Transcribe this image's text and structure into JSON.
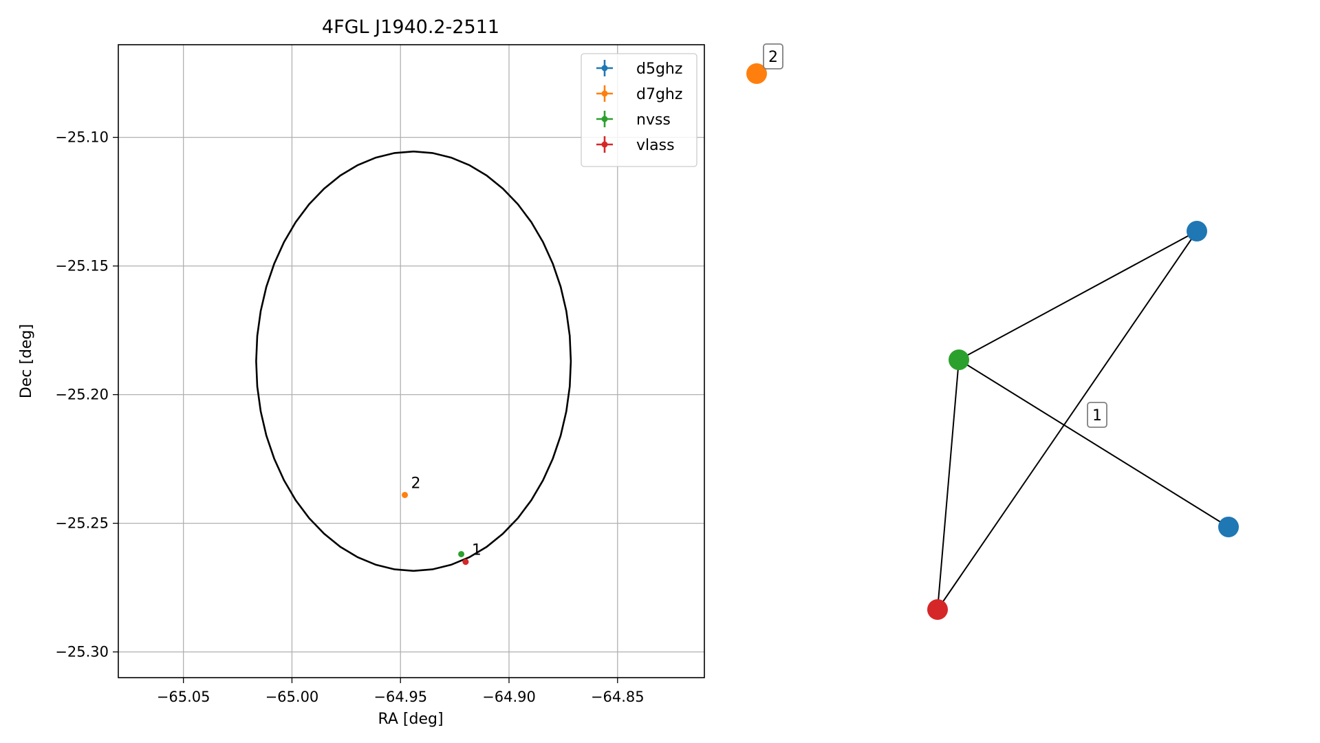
{
  "chart_data": [
    {
      "type": "scatter",
      "title": "4FGL J1940.2-2511",
      "xlabel": "RA [deg]",
      "ylabel": "Dec [deg]",
      "xlim": [
        -65.08,
        -64.81
      ],
      "ylim": [
        -25.31,
        -25.064
      ],
      "xticks": [
        -65.05,
        -65.0,
        -64.95,
        -64.9,
        -64.85
      ],
      "xtick_labels": [
        "−65.05",
        "−65.00",
        "−64.95",
        "−64.90",
        "−64.85"
      ],
      "yticks": [
        -25.1,
        -25.15,
        -25.2,
        -25.25,
        -25.3
      ],
      "ytick_labels": [
        "−25.10",
        "−25.15",
        "−25.20",
        "−25.25",
        "−25.30"
      ],
      "grid": true,
      "legend_position": "top-right",
      "ellipse": {
        "center_ra": -64.944,
        "center_dec": -25.187,
        "half_width_ra": 0.0725,
        "half_height_dec": 0.0815
      },
      "series": [
        {
          "name": "d5ghz",
          "color": "#1f77b4",
          "points": []
        },
        {
          "name": "d7ghz",
          "color": "#ff7f0e",
          "points": [
            {
              "ra": -64.948,
              "dec": -25.239,
              "label": "2"
            }
          ]
        },
        {
          "name": "nvss",
          "color": "#2ca02c",
          "points": [
            {
              "ra": -64.922,
              "dec": -25.262,
              "label": ""
            }
          ]
        },
        {
          "name": "vlass",
          "color": "#d62728",
          "points": [
            {
              "ra": -64.92,
              "dec": -25.265,
              "label": ""
            }
          ]
        }
      ],
      "annotations": [
        {
          "text": "2",
          "ra": -64.948,
          "dec": -25.239
        },
        {
          "text": "1",
          "ra": -64.92,
          "dec": -25.265
        }
      ]
    },
    {
      "type": "network",
      "nodes": [
        {
          "id": "orange",
          "color": "#ff7f0e",
          "label": "2"
        },
        {
          "id": "blue-top",
          "color": "#1f77b4",
          "label": ""
        },
        {
          "id": "green",
          "color": "#2ca02c",
          "label": ""
        },
        {
          "id": "blue-bottom",
          "color": "#1f77b4",
          "label": ""
        },
        {
          "id": "red",
          "color": "#d62728",
          "label": ""
        }
      ],
      "edges": [
        [
          "green",
          "blue-top"
        ],
        [
          "green",
          "blue-bottom"
        ],
        [
          "green",
          "red"
        ],
        [
          "red",
          "blue-top"
        ]
      ],
      "edge_labels": [
        {
          "text": "1"
        }
      ]
    }
  ]
}
